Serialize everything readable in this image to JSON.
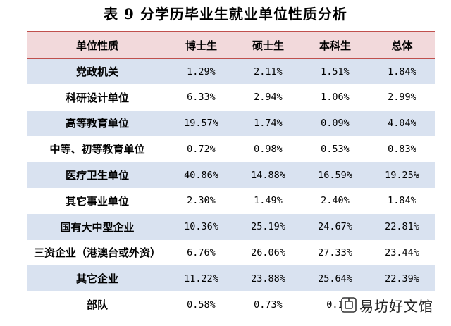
{
  "title": "表 9 分学历毕业生就业单位性质分析",
  "table": {
    "headers": [
      "单位性质",
      "博士生",
      "硕士生",
      "本科生",
      "总体"
    ],
    "rows": [
      {
        "label": "党政机关",
        "values": [
          "1.29%",
          "2.11%",
          "1.51%",
          "1.84%"
        ]
      },
      {
        "label": "科研设计单位",
        "values": [
          "6.33%",
          "2.94%",
          "1.06%",
          "2.99%"
        ]
      },
      {
        "label": "高等教育单位",
        "values": [
          "19.57%",
          "1.74%",
          "0.09%",
          "4.04%"
        ]
      },
      {
        "label": "中等、初等教育单位",
        "values": [
          "0.72%",
          "0.98%",
          "0.53%",
          "0.83%"
        ]
      },
      {
        "label": "医疗卫生单位",
        "values": [
          "40.86%",
          "14.88%",
          "16.59%",
          "19.25%"
        ]
      },
      {
        "label": "其它事业单位",
        "values": [
          "2.30%",
          "1.49%",
          "2.40%",
          "1.84%"
        ]
      },
      {
        "label": "国有大中型企业",
        "values": [
          "10.36%",
          "25.19%",
          "24.67%",
          "22.81%"
        ]
      },
      {
        "label": "三资企业（港澳台或外资）",
        "values": [
          "6.76%",
          "26.06%",
          "27.33%",
          "23.44%"
        ]
      },
      {
        "label": "其它企业",
        "values": [
          "11.22%",
          "23.88%",
          "25.64%",
          "22.39%"
        ]
      },
      {
        "label": "部队",
        "values": [
          "0.58%",
          "0.73%",
          "0.1",
          ""
        ]
      }
    ]
  },
  "watermark": {
    "text": "易坊好文馆"
  },
  "colors": {
    "header_bg": "#f2d9db",
    "header_rule": "#c0504d",
    "stripe": "#d9e2f0"
  }
}
